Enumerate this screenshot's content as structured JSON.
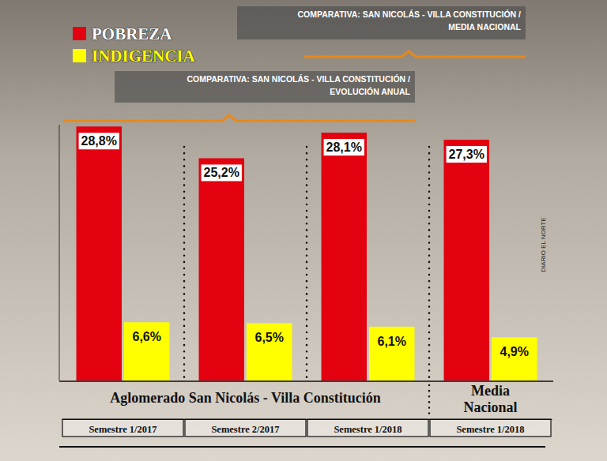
{
  "chart_data": {
    "type": "bar",
    "title": "COMPARATIVA: SAN NICOLÁS - VILLA CONSTITUCIÓN / MEDIA NACIONAL",
    "subtitle": "COMPARATIVA: SAN NICOLÁS - VILLA CONSTITUCIÓN / EVOLUCIÓN ANUAL",
    "categories": [
      "Semestre 1/2017",
      "Semestre 2/2017",
      "Semestre 1/2018",
      "Semestre 1/2018"
    ],
    "category_groups": [
      "Aglomerado San Nicolás - Villa Constitución",
      "Aglomerado San Nicolás - Villa Constitución",
      "Aglomerado San Nicolás - Villa Constitución",
      "Media Nacional"
    ],
    "series": [
      {
        "name": "POBREZA",
        "color": "#e3000f",
        "values": [
          28.8,
          25.2,
          28.1,
          27.3
        ],
        "value_labels": [
          "28,8%",
          "25,2%",
          "28,1%",
          "27,3%"
        ]
      },
      {
        "name": "INDIGENCIA",
        "color": "#ffff00",
        "values": [
          6.6,
          6.5,
          6.1,
          4.9
        ],
        "value_labels": [
          "6,6%",
          "6,5%",
          "6,1%",
          "4,9%"
        ]
      }
    ],
    "ylim": [
      0,
      29
    ],
    "data_labels": true,
    "tick_labels": "x",
    "legend": "upper left",
    "annotations": [
      "DIARIO EL NORTE"
    ]
  }
}
